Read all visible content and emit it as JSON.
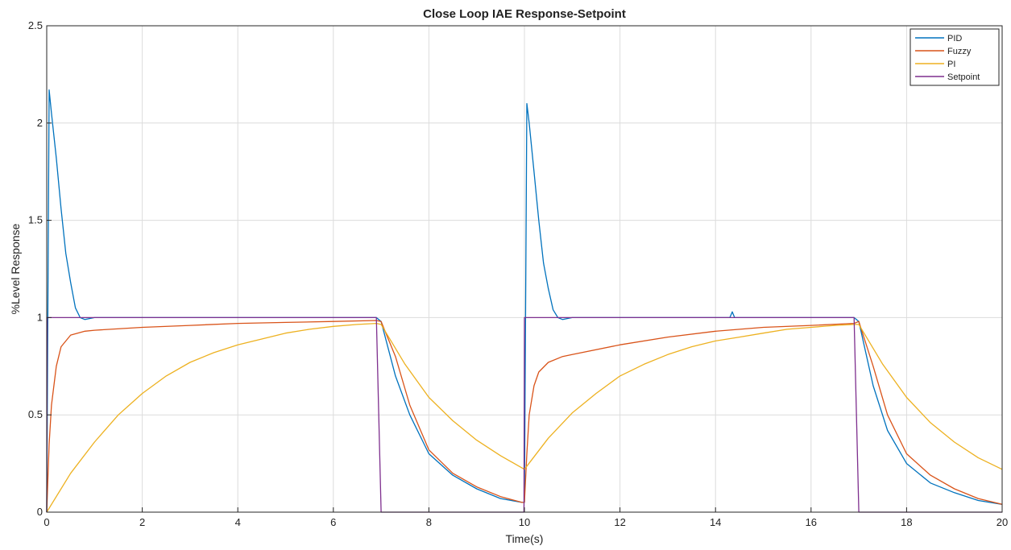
{
  "chart_data": {
    "type": "line",
    "title": "Close Loop IAE Response-Setpoint",
    "xlabel": "Time(s)",
    "ylabel": "%Level Response",
    "xlim": [
      0,
      20
    ],
    "ylim": [
      0,
      2.5
    ],
    "xticks": [
      0,
      2,
      4,
      6,
      8,
      10,
      12,
      14,
      16,
      18,
      20
    ],
    "yticks": [
      0,
      0.5,
      1,
      1.5,
      2,
      2.5
    ],
    "xtick_labels": [
      "0",
      "2",
      "4",
      "6",
      "8",
      "10",
      "12",
      "14",
      "16",
      "18",
      "20"
    ],
    "ytick_labels": [
      "0",
      "0.5",
      "1",
      "1.5",
      "2",
      "2.5"
    ],
    "grid": true,
    "legend_position": "top-right",
    "series": [
      {
        "name": "PID",
        "color": "#0072BD",
        "x": [
          0,
          0.05,
          0.1,
          0.2,
          0.3,
          0.4,
          0.5,
          0.6,
          0.7,
          0.8,
          1.0,
          2.0,
          3.0,
          4.0,
          5.0,
          6.0,
          6.9,
          7.0,
          7.3,
          7.6,
          8.0,
          8.5,
          9.0,
          9.5,
          9.95,
          10.0,
          10.05,
          10.1,
          10.2,
          10.3,
          10.4,
          10.5,
          10.6,
          10.7,
          10.8,
          11.0,
          12.0,
          13.0,
          14.0,
          14.3,
          14.35,
          14.4,
          15.0,
          16.0,
          16.9,
          17.0,
          17.3,
          17.6,
          18.0,
          18.5,
          19.0,
          19.5,
          20.0
        ],
        "y": [
          0,
          2.17,
          2.05,
          1.82,
          1.56,
          1.33,
          1.18,
          1.05,
          1.0,
          0.99,
          1.0,
          1.0,
          1.0,
          1.0,
          1.0,
          1.0,
          1.0,
          0.98,
          0.7,
          0.5,
          0.3,
          0.19,
          0.12,
          0.07,
          0.05,
          0.05,
          2.1,
          2.0,
          1.75,
          1.5,
          1.28,
          1.15,
          1.04,
          1.0,
          0.99,
          1.0,
          1.0,
          1.0,
          1.0,
          1.0,
          1.03,
          1.0,
          1.0,
          1.0,
          1.0,
          0.98,
          0.65,
          0.42,
          0.25,
          0.15,
          0.1,
          0.06,
          0.04
        ]
      },
      {
        "name": "Fuzzy",
        "color": "#D95319",
        "x": [
          0,
          0.05,
          0.1,
          0.2,
          0.3,
          0.5,
          0.8,
          1.0,
          2.0,
          3.0,
          4.0,
          5.0,
          6.0,
          6.9,
          7.0,
          7.3,
          7.6,
          8.0,
          8.5,
          9.0,
          9.5,
          9.95,
          10.0,
          10.05,
          10.1,
          10.2,
          10.3,
          10.5,
          10.8,
          11.0,
          12.0,
          13.0,
          14.0,
          15.0,
          16.0,
          16.9,
          17.0,
          17.3,
          17.6,
          18.0,
          18.5,
          19.0,
          19.5,
          20.0
        ],
        "y": [
          0,
          0.35,
          0.55,
          0.75,
          0.85,
          0.91,
          0.93,
          0.935,
          0.95,
          0.96,
          0.97,
          0.975,
          0.98,
          0.985,
          0.98,
          0.8,
          0.55,
          0.32,
          0.2,
          0.13,
          0.08,
          0.05,
          0.05,
          0.3,
          0.5,
          0.65,
          0.72,
          0.77,
          0.8,
          0.81,
          0.86,
          0.9,
          0.93,
          0.95,
          0.96,
          0.97,
          0.98,
          0.75,
          0.5,
          0.3,
          0.19,
          0.12,
          0.07,
          0.04
        ]
      },
      {
        "name": "PI",
        "color": "#EDB120",
        "x": [
          0,
          0.5,
          1,
          1.5,
          2,
          2.5,
          3,
          3.5,
          4,
          4.5,
          5,
          5.5,
          6,
          6.5,
          6.9,
          7.0,
          7.5,
          8.0,
          8.5,
          9.0,
          9.5,
          10.0,
          10.5,
          11,
          11.5,
          12,
          12.5,
          13,
          13.5,
          14,
          14.5,
          15,
          15.5,
          16,
          16.5,
          16.9,
          17.0,
          17.5,
          18.0,
          18.5,
          19.0,
          19.5,
          20.0
        ],
        "y": [
          0,
          0.2,
          0.36,
          0.5,
          0.61,
          0.7,
          0.77,
          0.82,
          0.86,
          0.89,
          0.92,
          0.94,
          0.955,
          0.965,
          0.97,
          0.965,
          0.76,
          0.59,
          0.47,
          0.37,
          0.29,
          0.22,
          0.38,
          0.51,
          0.61,
          0.7,
          0.76,
          0.81,
          0.85,
          0.88,
          0.9,
          0.92,
          0.94,
          0.95,
          0.96,
          0.965,
          0.965,
          0.76,
          0.59,
          0.46,
          0.36,
          0.28,
          0.22
        ]
      },
      {
        "name": "Setpoint",
        "color": "#7E2F8E",
        "x": [
          0,
          0.01,
          6.9,
          7.0,
          9.99,
          10.0,
          16.9,
          17.0,
          20.0
        ],
        "y": [
          0,
          1,
          1,
          0,
          0,
          1,
          1,
          0,
          0
        ]
      }
    ]
  }
}
